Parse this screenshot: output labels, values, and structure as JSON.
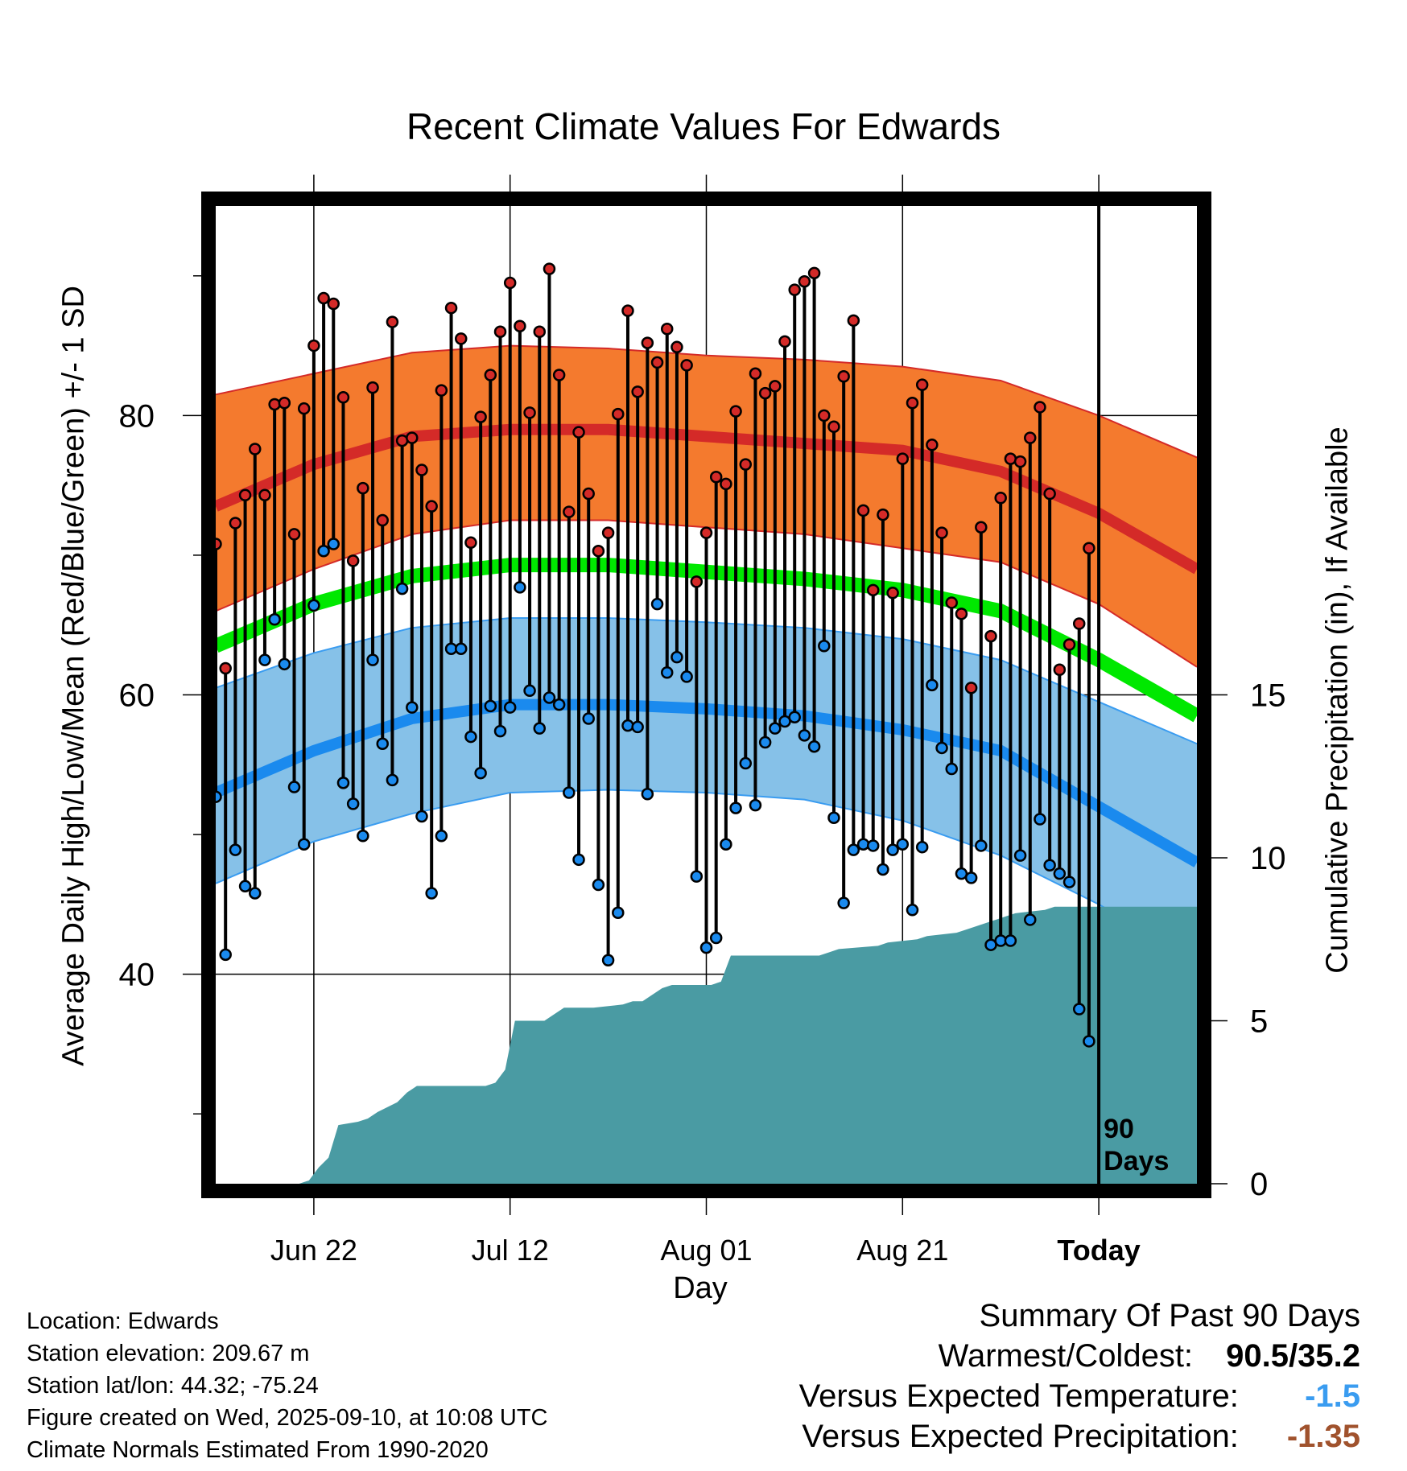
{
  "chart_data": {
    "type": "line",
    "title": "Recent Climate Values For Edwards",
    "ylabel": "Average Daily High/Low/Mean (Red/Blue/Green) +/- 1 SD",
    "y2label": "Cumulative Precipitation (in), If Available",
    "xlabel": "Day",
    "ylim": [
      25,
      95
    ],
    "y2lim": [
      0,
      30
    ],
    "yticks": [
      40,
      60,
      80
    ],
    "y2ticks": [
      0,
      5,
      10,
      15
    ],
    "xlim": [
      -10,
      90
    ],
    "xticks": [
      {
        "day": 0,
        "label": "Jun 22"
      },
      {
        "day": 20,
        "label": "Jul 12"
      },
      {
        "day": 40,
        "label": "Aug 01"
      },
      {
        "day": 60,
        "label": "Aug 21"
      },
      {
        "day": 80,
        "label": "Today"
      }
    ],
    "today_marker": {
      "day": 80,
      "label_line1": "90",
      "label_line2": "Days"
    },
    "normals": {
      "x": [
        -10,
        0,
        10,
        20,
        30,
        40,
        50,
        60,
        70,
        80,
        90
      ],
      "high_mean": [
        73.5,
        76.5,
        78.5,
        79.0,
        79.0,
        78.5,
        78.0,
        77.5,
        76.0,
        73.0,
        69.0
      ],
      "high_upper": [
        81.5,
        83.0,
        84.5,
        85.0,
        84.8,
        84.3,
        84.0,
        83.5,
        82.5,
        80.0,
        77.0
      ],
      "high_lower": [
        66.0,
        69.0,
        71.5,
        72.5,
        72.5,
        72.0,
        71.5,
        70.5,
        69.5,
        66.5,
        62.0
      ],
      "mean": [
        63.5,
        66.5,
        68.5,
        69.3,
        69.3,
        68.8,
        68.3,
        67.5,
        66.0,
        62.5,
        58.5
      ],
      "low_mean": [
        53.0,
        56.0,
        58.3,
        59.3,
        59.3,
        59.0,
        58.5,
        57.5,
        56.0,
        52.0,
        48.0
      ],
      "low_upper": [
        60.5,
        63.0,
        64.8,
        65.5,
        65.5,
        65.2,
        64.8,
        64.0,
        62.5,
        59.5,
        56.5
      ],
      "low_lower": [
        46.5,
        49.5,
        51.5,
        53.0,
        53.2,
        53.0,
        52.5,
        51.0,
        48.5,
        45.0,
        41.0
      ]
    },
    "daily": {
      "start_day": -10,
      "high": [
        70.8,
        61.9,
        72.3,
        74.3,
        77.6,
        74.3,
        80.8,
        80.9,
        71.5,
        80.5,
        85.0,
        88.4,
        88.0,
        81.3,
        69.6,
        74.8,
        82.0,
        72.5,
        86.7,
        78.2,
        78.4,
        76.1,
        73.5,
        81.8,
        87.7,
        85.5,
        70.9,
        79.9,
        82.9,
        86.0,
        89.5,
        86.4,
        80.2,
        86.0,
        90.5,
        82.9,
        73.1,
        78.8,
        74.4,
        70.3,
        71.6,
        80.1,
        87.5,
        81.7,
        85.2,
        83.8,
        86.2,
        84.9,
        83.6,
        68.1,
        71.6,
        75.6,
        75.1,
        80.3,
        76.5,
        83.0,
        81.6,
        82.1,
        85.3,
        89.0,
        89.6,
        90.2,
        80.0,
        79.2,
        82.8,
        86.8,
        73.2,
        67.5,
        72.9,
        67.3,
        76.9,
        80.9,
        82.2,
        77.9,
        71.6,
        66.6,
        65.8,
        60.5,
        72.0,
        64.2,
        74.1,
        76.9,
        76.7,
        78.4,
        80.6,
        74.4,
        61.8,
        63.6,
        65.1,
        70.5
      ],
      "low": [
        52.7,
        41.4,
        48.9,
        46.3,
        45.8,
        62.5,
        65.4,
        62.2,
        53.4,
        49.3,
        66.4,
        70.3,
        70.8,
        53.7,
        52.2,
        49.9,
        62.5,
        56.5,
        53.9,
        67.6,
        59.1,
        51.3,
        45.8,
        49.9,
        63.3,
        63.3,
        57.0,
        54.4,
        59.2,
        57.4,
        59.1,
        67.7,
        60.3,
        57.6,
        59.8,
        59.3,
        53.0,
        48.2,
        58.3,
        46.4,
        41.0,
        44.4,
        57.8,
        57.7,
        52.9,
        66.5,
        61.6,
        62.7,
        61.3,
        47.0,
        41.9,
        42.6,
        49.3,
        51.9,
        55.1,
        52.1,
        56.6,
        57.6,
        58.1,
        58.4,
        57.1,
        56.3,
        63.5,
        51.2,
        45.1,
        48.9,
        49.3,
        49.2,
        47.5,
        48.9,
        49.3,
        44.6,
        49.1,
        60.7,
        56.2,
        54.7,
        47.2,
        46.9,
        49.2,
        42.1,
        42.4,
        42.4,
        48.5,
        43.9,
        51.1,
        47.8,
        47.2,
        46.6,
        37.5,
        35.2
      ]
    },
    "precip_cumulative": {
      "x": [
        -10,
        -1.5,
        -0.5,
        0.5,
        1.5,
        2.5,
        4.5,
        5.5,
        6.5,
        8.5,
        9.5,
        10.5,
        17.5,
        18.5,
        19.5,
        20.5,
        23.5,
        24.5,
        25.5,
        28.5,
        31.5,
        32.5,
        33.5,
        34.5,
        35.5,
        36.5,
        40.5,
        41.5,
        42.5,
        51.5,
        52.5,
        53.5,
        57.5,
        58.5,
        61.5,
        62.5,
        65.5,
        66.5,
        68.5,
        69.5,
        70.5,
        71.5,
        74.5,
        75.5,
        80.0,
        90.0
      ],
      "values": [
        0,
        0,
        0.1,
        0.5,
        0.8,
        1.8,
        1.9,
        2.0,
        2.2,
        2.5,
        2.8,
        3.0,
        3.0,
        3.1,
        3.5,
        5.0,
        5.0,
        5.2,
        5.4,
        5.4,
        5.5,
        5.6,
        5.6,
        5.8,
        6.0,
        6.1,
        6.1,
        6.2,
        7.0,
        7.0,
        7.1,
        7.2,
        7.3,
        7.4,
        7.5,
        7.6,
        7.7,
        7.8,
        8.0,
        8.1,
        8.2,
        8.3,
        8.4,
        8.5,
        8.5,
        8.5
      ]
    }
  },
  "station_info": {
    "location": "Location: Edwards",
    "elevation": "Station elevation: 209.67 m",
    "latlon": "Station lat/lon: 44.32; -75.24",
    "created": "Figure created on Wed, 2025-09-10, at 10:08 UTC",
    "normals_period": "Climate Normals Estimated From 1990-2020"
  },
  "summary": {
    "heading": "Summary Of Past 90 Days",
    "warmest_coldest_label": "Warmest/Coldest:",
    "warmest_coldest_value": "90.5/35.2",
    "temp_label": "Versus Expected Temperature:",
    "temp_value": "-1.5",
    "precip_label": "Versus Expected Precipitation:",
    "precip_value": "-1.35"
  },
  "colors": {
    "high_band": "#f47a2e",
    "high_line": "#d42a28",
    "mean_line": "#00e800",
    "low_band": "#86c1e8",
    "low_line": "#1a8aee",
    "low_band_edge": "#3a9cf0",
    "precip_fill": "#4a9ba3",
    "high_dot": "#d42a28",
    "low_dot": "#1a8aee",
    "temp_value": "#3a9cf0",
    "precip_value": "#a0522d"
  }
}
